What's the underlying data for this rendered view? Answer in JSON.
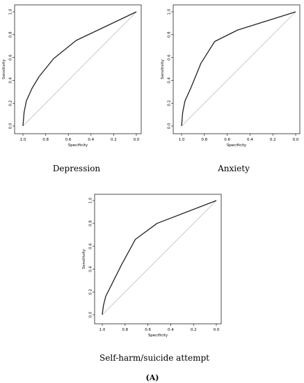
{
  "figure": {
    "panel_label": "(A)"
  },
  "chart_data": [
    {
      "type": "line",
      "caption": "Depression",
      "xlabel": "Specificity",
      "ylabel": "Sensitivity",
      "x_reversed": true,
      "xlim": [
        1.0,
        0.0
      ],
      "ylim": [
        0.0,
        1.0
      ],
      "x_ticks": [
        "1.0",
        "0.8",
        "0.6",
        "0.4",
        "0.2",
        "0.0"
      ],
      "y_ticks": [
        "0.0",
        "0.2",
        "0.4",
        "0.6",
        "0.8",
        "1.0"
      ],
      "grid": false,
      "reference_line": true,
      "series": [
        {
          "x": [
            1.0,
            0.99,
            0.97,
            0.92,
            0.86,
            0.73,
            0.53,
            0.0
          ],
          "y": [
            0.0,
            0.12,
            0.22,
            0.33,
            0.43,
            0.59,
            0.75,
            1.0
          ]
        }
      ]
    },
    {
      "type": "line",
      "caption": "Anxiety",
      "xlabel": "Specificity",
      "ylabel": "Sensitivity",
      "x_reversed": true,
      "xlim": [
        1.0,
        0.0
      ],
      "ylim": [
        0.0,
        1.0
      ],
      "x_ticks": [
        "1.0",
        "0.8",
        "0.6",
        "0.4",
        "0.2",
        "0.0"
      ],
      "y_ticks": [
        "0.0",
        "0.2",
        "0.4",
        "0.6",
        "0.8",
        "1.0"
      ],
      "grid": false,
      "reference_line": true,
      "series": [
        {
          "x": [
            1.0,
            0.99,
            0.97,
            0.92,
            0.83,
            0.71,
            0.51,
            0.0
          ],
          "y": [
            0.0,
            0.12,
            0.22,
            0.33,
            0.55,
            0.74,
            0.84,
            1.0
          ]
        }
      ]
    },
    {
      "type": "line",
      "caption": "Self-harm/suicide attempt",
      "xlabel": "Specificity",
      "ylabel": "Sensitivity",
      "x_reversed": true,
      "xlim": [
        1.0,
        0.0
      ],
      "ylim": [
        0.0,
        1.0
      ],
      "x_ticks": [
        "1.0",
        "0.8",
        "0.6",
        "0.4",
        "0.2",
        "0.0"
      ],
      "y_ticks": [
        "0.0",
        "0.2",
        "0.4",
        "0.6",
        "0.8",
        "1.0"
      ],
      "grid": false,
      "reference_line": true,
      "series": [
        {
          "x": [
            1.0,
            0.99,
            0.97,
            0.91,
            0.83,
            0.71,
            0.52,
            0.0
          ],
          "y": [
            0.0,
            0.08,
            0.16,
            0.28,
            0.44,
            0.66,
            0.8,
            1.0
          ]
        }
      ]
    }
  ]
}
